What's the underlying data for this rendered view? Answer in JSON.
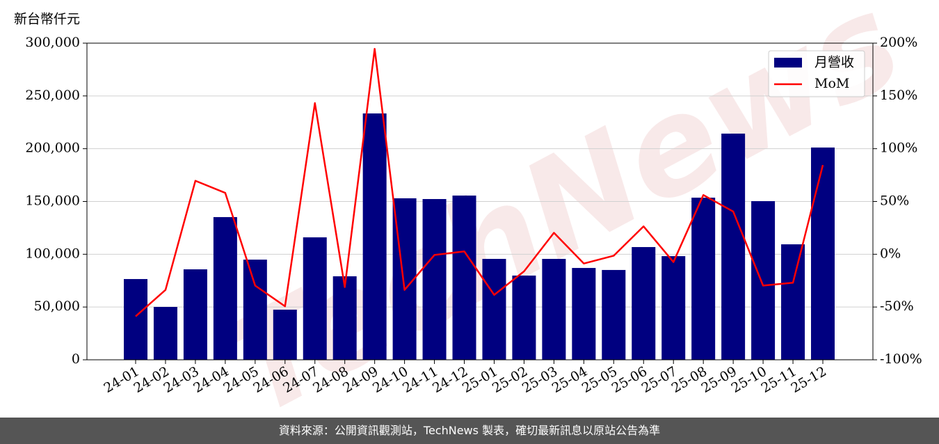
{
  "chart_data": {
    "type": "combo",
    "y_label": "新台幣仟元",
    "watermark": "TechNews",
    "categories": [
      "24-01",
      "24-02",
      "24-03",
      "24-04",
      "24-05",
      "24-06",
      "24-07",
      "24-08",
      "24-09",
      "24-10",
      "24-11",
      "24-12",
      "25-01",
      "25-02",
      "25-03",
      "25-04",
      "25-05",
      "25-06",
      "25-07",
      "25-08",
      "25-09",
      "25-10",
      "25-11",
      "25-12"
    ],
    "series": [
      {
        "name": "月營收",
        "type": "bar",
        "color": "#000080",
        "values": [
          76500,
          50100,
          85700,
          135200,
          94900,
          47500,
          116000,
          79100,
          233400,
          153000,
          152300,
          155600,
          95600,
          79800,
          95600,
          87000,
          85100,
          106800,
          98200,
          153600,
          214300,
          150300,
          109400,
          201100
        ]
      },
      {
        "name": "MoM",
        "type": "line",
        "color": "#ff0000",
        "axis": "y2",
        "values": [
          -58.8,
          -33.8,
          69.6,
          58.1,
          -29.7,
          -49.3,
          143.2,
          -31.1,
          194.6,
          -33.8,
          -0.7,
          2.7,
          -38.5,
          -16.2,
          20.3,
          -8.8,
          -1.4,
          26.4,
          -7.4,
          56.1,
          40.5,
          -29.7,
          -27.0,
          84.5
        ]
      }
    ],
    "ylim": [
      0,
      300000
    ],
    "yticks": [
      0,
      {
        "value": 50000,
        "label": "50,000"
      },
      {
        "value": 100000,
        "label": "100,000"
      },
      {
        "value": 150000,
        "label": "150,000"
      },
      {
        "value": 200000,
        "label": "200,000"
      },
      {
        "value": 250000,
        "label": "250,000"
      },
      {
        "value": 300000,
        "label": "300,000"
      }
    ],
    "y2lim": [
      -100,
      200
    ],
    "y2ticks": [
      {
        "value": -100,
        "label": "-100%"
      },
      {
        "value": -50,
        "label": "-50%"
      },
      {
        "value": 0,
        "label": "0%"
      },
      {
        "value": 50,
        "label": "50%"
      },
      {
        "value": 100,
        "label": "100%"
      },
      {
        "value": 150,
        "label": "150%"
      },
      {
        "value": 200,
        "label": "200%"
      }
    ],
    "grid": true,
    "legend": "upper right"
  },
  "footer": "資料來源：公開資訊觀測站，TechNews 製表，確切最新訊息以原站公告為準"
}
